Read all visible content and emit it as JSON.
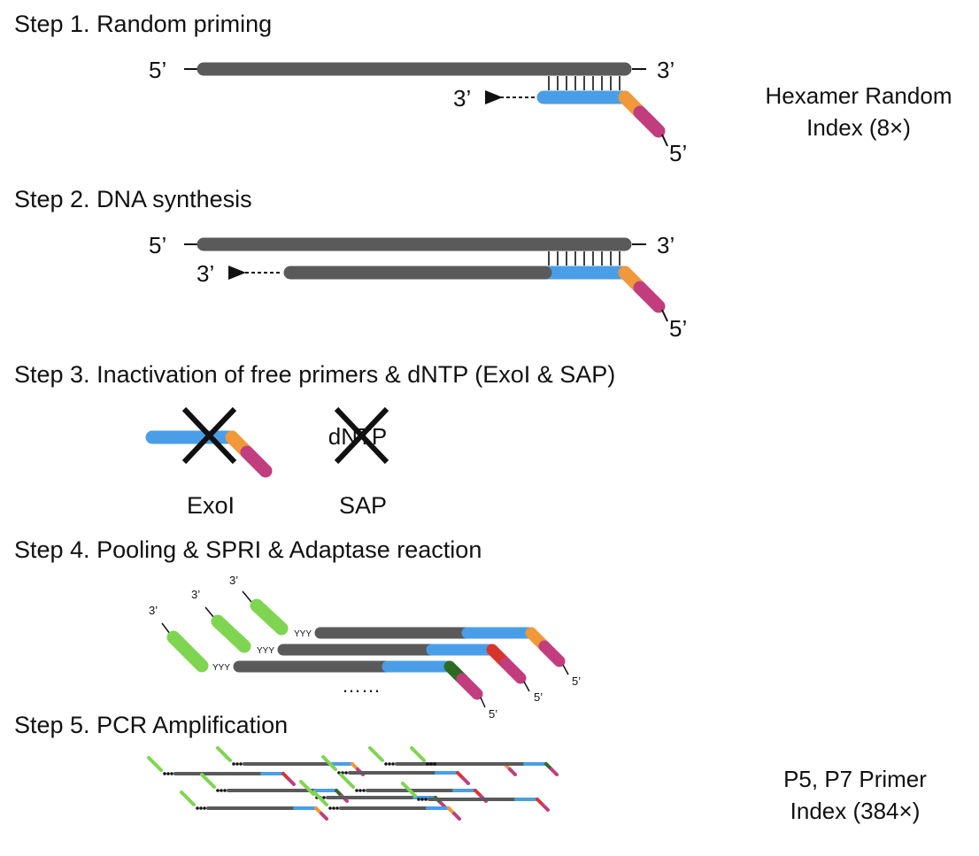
{
  "steps": [
    {
      "title": "Step 1. Random priming"
    },
    {
      "title": "Step 2. DNA synthesis"
    },
    {
      "title": "Step 3. Inactivation of free primers & dNTP (ExoI & SAP)"
    },
    {
      "title": "Step 4. Pooling & SPRI & Adaptase reaction"
    },
    {
      "title": "Step 5. PCR Amplification"
    }
  ],
  "side_labels": {
    "step1_line1": "Hexamer Random",
    "step1_line2": "Index (8×)",
    "step5_line1": "P5, P7 Primer",
    "step5_line2": "Index (384×)"
  },
  "ends": {
    "five_prime": "5’",
    "three_prime": "3’"
  },
  "step3": {
    "exo_label": "ExoI",
    "sap_label": "SAP",
    "dntp_text": "dNTP"
  },
  "step4": {
    "tail_text": "YYY",
    "ellipsis": "……"
  },
  "colors": {
    "dna": "#5a5a5a",
    "primer": "#4a9ee8",
    "index_orange": "#f0983a",
    "index_red": "#d8352a",
    "index_darkgreen": "#2e6b22",
    "adapter_magenta": "#c23d7e",
    "adapter_green": "#7fd552",
    "black": "#111111"
  }
}
